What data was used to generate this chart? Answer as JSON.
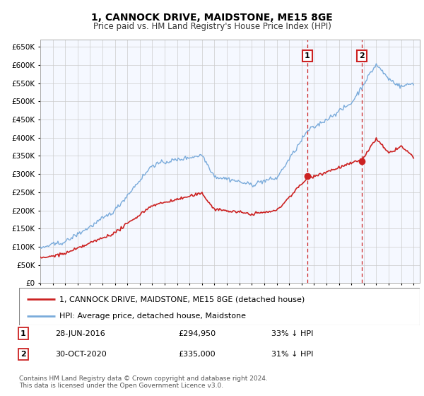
{
  "title": "1, CANNOCK DRIVE, MAIDSTONE, ME15 8GE",
  "subtitle": "Price paid vs. HM Land Registry's House Price Index (HPI)",
  "ylim": [
    0,
    670000
  ],
  "yticks": [
    0,
    50000,
    100000,
    150000,
    200000,
    250000,
    300000,
    350000,
    400000,
    450000,
    500000,
    550000,
    600000,
    650000
  ],
  "hpi_color": "#7aabdb",
  "price_color": "#cc2222",
  "vline_color": "#cc2222",
  "plot_bg": "#f5f8ff",
  "grid_color": "#cccccc",
  "sale1_date": 2016.46,
  "sale1_price": 294950,
  "sale2_date": 2020.83,
  "sale2_price": 335000,
  "legend_house": "1, CANNOCK DRIVE, MAIDSTONE, ME15 8GE (detached house)",
  "legend_hpi": "HPI: Average price, detached house, Maidstone",
  "note1_label": "1",
  "note1_date": "28-JUN-2016",
  "note1_price": "£294,950",
  "note1_pct": "33% ↓ HPI",
  "note2_label": "2",
  "note2_date": "30-OCT-2020",
  "note2_price": "£335,000",
  "note2_pct": "31% ↓ HPI",
  "copyright": "Contains HM Land Registry data © Crown copyright and database right 2024.\nThis data is licensed under the Open Government Licence v3.0."
}
